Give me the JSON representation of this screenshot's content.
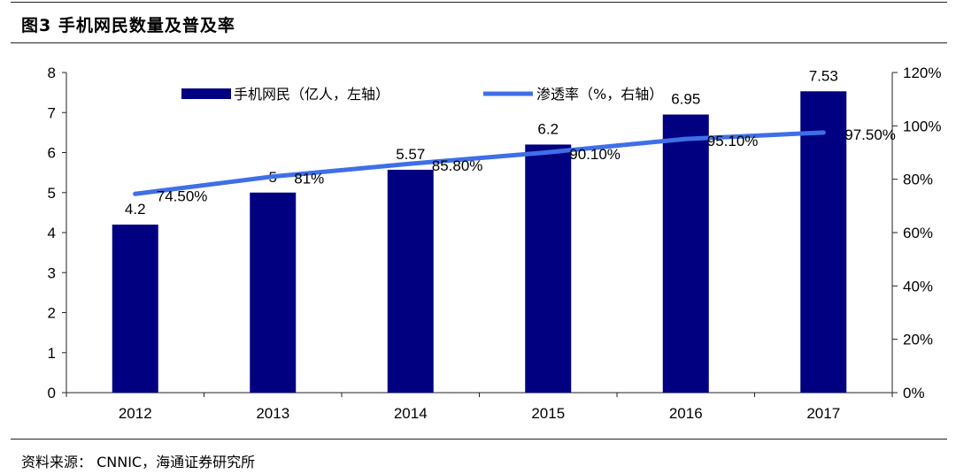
{
  "figure": {
    "title": "图3  手机网民数量及普及率",
    "source": "资料来源：  CNNIC，海通证券研究所"
  },
  "colors": {
    "bar": "#000080",
    "line": "#3f6fe8",
    "axis": "#222222",
    "grid_text": "#000000"
  },
  "chart_data": {
    "type": "bar",
    "title": "",
    "categories": [
      "2012",
      "2013",
      "2014",
      "2015",
      "2016",
      "2017"
    ],
    "series": [
      {
        "name": "手机网民（亿人，左轴）",
        "kind": "bar",
        "axis": "left",
        "values": [
          4.2,
          5,
          5.57,
          6.2,
          6.95,
          7.53
        ],
        "labels": [
          "4.2",
          "5",
          "5.57",
          "6.2",
          "6.95",
          "7.53"
        ]
      },
      {
        "name": "渗透率（%，右轴）",
        "kind": "line",
        "axis": "right",
        "values": [
          74.5,
          81,
          85.8,
          90.1,
          95.1,
          97.5
        ],
        "labels": [
          "74.50%",
          "81%",
          "85.80%",
          "90.10%",
          "95.10%",
          "97.50%"
        ]
      }
    ],
    "y_left": {
      "ylim": [
        0,
        8
      ],
      "ticks": [
        "0",
        "1",
        "2",
        "3",
        "4",
        "5",
        "6",
        "7",
        "8"
      ]
    },
    "y_right": {
      "ylim": [
        0,
        120
      ],
      "ticks": [
        "0%",
        "20%",
        "40%",
        "60%",
        "80%",
        "100%",
        "120%"
      ]
    },
    "legend_position": "top-center",
    "grid": false
  }
}
